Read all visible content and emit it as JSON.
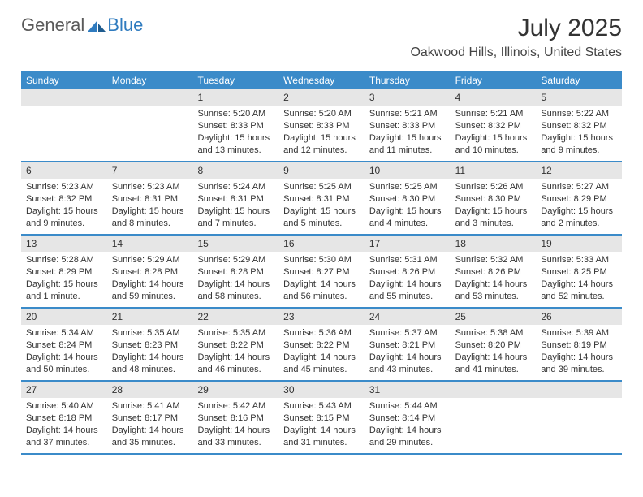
{
  "brand": {
    "general": "General",
    "blue": "Blue"
  },
  "title": "July 2025",
  "location": "Oakwood Hills, Illinois, United States",
  "colors": {
    "header_bg": "#3b8bc9",
    "daynum_bg": "#e6e6e6",
    "border": "#3b8bc9",
    "text": "#333333",
    "brand_gray": "#5a5a5a",
    "brand_blue": "#2f7bbf"
  },
  "weekdays": [
    "Sunday",
    "Monday",
    "Tuesday",
    "Wednesday",
    "Thursday",
    "Friday",
    "Saturday"
  ],
  "weeks": [
    [
      null,
      null,
      {
        "n": "1",
        "sr": "5:20 AM",
        "ss": "8:33 PM",
        "dl": "15 hours and 13 minutes."
      },
      {
        "n": "2",
        "sr": "5:20 AM",
        "ss": "8:33 PM",
        "dl": "15 hours and 12 minutes."
      },
      {
        "n": "3",
        "sr": "5:21 AM",
        "ss": "8:33 PM",
        "dl": "15 hours and 11 minutes."
      },
      {
        "n": "4",
        "sr": "5:21 AM",
        "ss": "8:32 PM",
        "dl": "15 hours and 10 minutes."
      },
      {
        "n": "5",
        "sr": "5:22 AM",
        "ss": "8:32 PM",
        "dl": "15 hours and 9 minutes."
      }
    ],
    [
      {
        "n": "6",
        "sr": "5:23 AM",
        "ss": "8:32 PM",
        "dl": "15 hours and 9 minutes."
      },
      {
        "n": "7",
        "sr": "5:23 AM",
        "ss": "8:31 PM",
        "dl": "15 hours and 8 minutes."
      },
      {
        "n": "8",
        "sr": "5:24 AM",
        "ss": "8:31 PM",
        "dl": "15 hours and 7 minutes."
      },
      {
        "n": "9",
        "sr": "5:25 AM",
        "ss": "8:31 PM",
        "dl": "15 hours and 5 minutes."
      },
      {
        "n": "10",
        "sr": "5:25 AM",
        "ss": "8:30 PM",
        "dl": "15 hours and 4 minutes."
      },
      {
        "n": "11",
        "sr": "5:26 AM",
        "ss": "8:30 PM",
        "dl": "15 hours and 3 minutes."
      },
      {
        "n": "12",
        "sr": "5:27 AM",
        "ss": "8:29 PM",
        "dl": "15 hours and 2 minutes."
      }
    ],
    [
      {
        "n": "13",
        "sr": "5:28 AM",
        "ss": "8:29 PM",
        "dl": "15 hours and 1 minute."
      },
      {
        "n": "14",
        "sr": "5:29 AM",
        "ss": "8:28 PM",
        "dl": "14 hours and 59 minutes."
      },
      {
        "n": "15",
        "sr": "5:29 AM",
        "ss": "8:28 PM",
        "dl": "14 hours and 58 minutes."
      },
      {
        "n": "16",
        "sr": "5:30 AM",
        "ss": "8:27 PM",
        "dl": "14 hours and 56 minutes."
      },
      {
        "n": "17",
        "sr": "5:31 AM",
        "ss": "8:26 PM",
        "dl": "14 hours and 55 minutes."
      },
      {
        "n": "18",
        "sr": "5:32 AM",
        "ss": "8:26 PM",
        "dl": "14 hours and 53 minutes."
      },
      {
        "n": "19",
        "sr": "5:33 AM",
        "ss": "8:25 PM",
        "dl": "14 hours and 52 minutes."
      }
    ],
    [
      {
        "n": "20",
        "sr": "5:34 AM",
        "ss": "8:24 PM",
        "dl": "14 hours and 50 minutes."
      },
      {
        "n": "21",
        "sr": "5:35 AM",
        "ss": "8:23 PM",
        "dl": "14 hours and 48 minutes."
      },
      {
        "n": "22",
        "sr": "5:35 AM",
        "ss": "8:22 PM",
        "dl": "14 hours and 46 minutes."
      },
      {
        "n": "23",
        "sr": "5:36 AM",
        "ss": "8:22 PM",
        "dl": "14 hours and 45 minutes."
      },
      {
        "n": "24",
        "sr": "5:37 AM",
        "ss": "8:21 PM",
        "dl": "14 hours and 43 minutes."
      },
      {
        "n": "25",
        "sr": "5:38 AM",
        "ss": "8:20 PM",
        "dl": "14 hours and 41 minutes."
      },
      {
        "n": "26",
        "sr": "5:39 AM",
        "ss": "8:19 PM",
        "dl": "14 hours and 39 minutes."
      }
    ],
    [
      {
        "n": "27",
        "sr": "5:40 AM",
        "ss": "8:18 PM",
        "dl": "14 hours and 37 minutes."
      },
      {
        "n": "28",
        "sr": "5:41 AM",
        "ss": "8:17 PM",
        "dl": "14 hours and 35 minutes."
      },
      {
        "n": "29",
        "sr": "5:42 AM",
        "ss": "8:16 PM",
        "dl": "14 hours and 33 minutes."
      },
      {
        "n": "30",
        "sr": "5:43 AM",
        "ss": "8:15 PM",
        "dl": "14 hours and 31 minutes."
      },
      {
        "n": "31",
        "sr": "5:44 AM",
        "ss": "8:14 PM",
        "dl": "14 hours and 29 minutes."
      },
      null,
      null
    ]
  ],
  "labels": {
    "sunrise": "Sunrise: ",
    "sunset": "Sunset: ",
    "daylight": "Daylight: "
  }
}
